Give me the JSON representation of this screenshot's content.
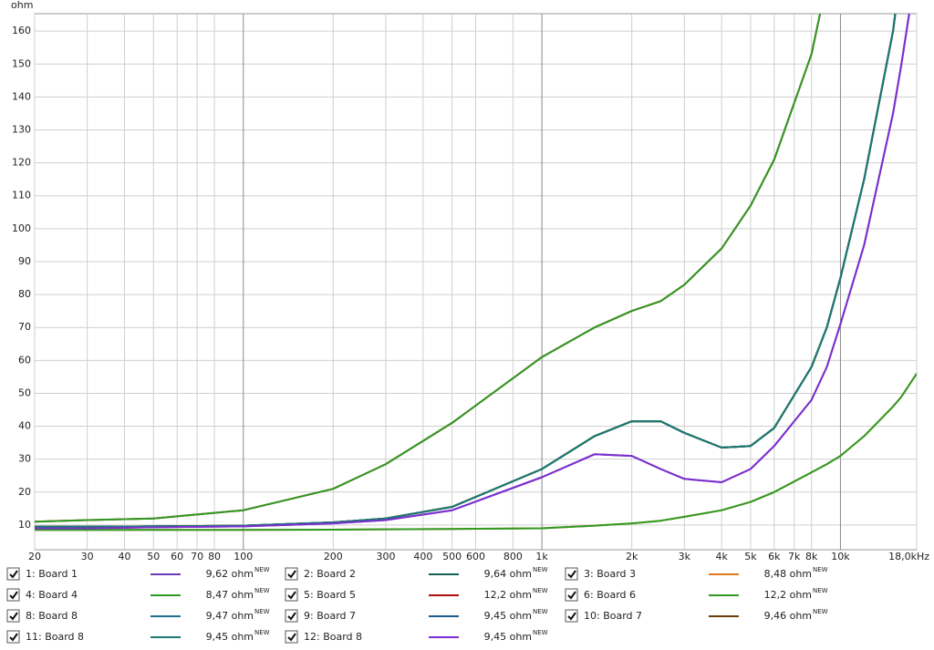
{
  "chart_data": {
    "type": "line",
    "y_label": "ohm",
    "xscale": "log",
    "grid": true,
    "xlim": [
      20,
      18000
    ],
    "ylim": [
      2.5,
      165.3
    ],
    "xticks": [
      20,
      30,
      40,
      50,
      60,
      70,
      80,
      100,
      200,
      300,
      400,
      500,
      600,
      800,
      {
        "value": 1000,
        "label": "1k"
      },
      {
        "value": 2000,
        "label": "2k"
      },
      {
        "value": 3000,
        "label": "3k"
      },
      {
        "value": 4000,
        "label": "4k"
      },
      {
        "value": 5000,
        "label": "5k"
      },
      {
        "value": 6000,
        "label": "6k"
      },
      {
        "value": 7000,
        "label": "7k"
      },
      {
        "value": 8000,
        "label": "8k"
      },
      {
        "value": 10000,
        "label": "10k"
      },
      {
        "value": 18000,
        "label": "18,0kHz"
      }
    ],
    "yticks": [
      10,
      20,
      30,
      40,
      50,
      60,
      70,
      80,
      90,
      100,
      110,
      120,
      130,
      140,
      150,
      160
    ],
    "x": [
      20,
      30,
      50,
      100,
      200,
      300,
      500,
      1000,
      1500,
      2000,
      2500,
      3000,
      4000,
      5000,
      6000,
      8000,
      9000,
      10000,
      12000,
      15000,
      16000,
      18000
    ],
    "series": [
      {
        "name": "1: Board 1",
        "color": "#6a3cb8",
        "value_label": "9,62 ohm",
        "badge": "NEW",
        "values": [
          9,
          9,
          9.3,
          9.6,
          10.5,
          11.5,
          14.5,
          24.5,
          31.5,
          31,
          27,
          24,
          23,
          27,
          34,
          48,
          58,
          71,
          95,
          135,
          150,
          180
        ]
      },
      {
        "name": "2: Board 2",
        "color": "#17605a",
        "value_label": "9,64 ohm",
        "badge": "NEW",
        "values": [
          9.5,
          9.5,
          9.6,
          9.8,
          10.8,
          12,
          15.5,
          27,
          37,
          41.5,
          41.5,
          38,
          33.5,
          34,
          39.5,
          58,
          70,
          85,
          115,
          160,
          180,
          null
        ]
      },
      {
        "name": "3: Board 3",
        "color": "#e07b18",
        "value_label": "8,48 ohm",
        "badge": "NEW",
        "values": [
          8.5,
          8.5,
          8.5,
          8.5,
          8.6,
          8.7,
          8.8,
          9,
          9.8,
          10.5,
          11.3,
          12.5,
          14.5,
          17,
          20,
          26,
          28.5,
          31,
          37,
          46,
          49,
          56
        ]
      },
      {
        "name": "4: Board 4",
        "color": "#2e9a22",
        "value_label": "8,47 ohm",
        "badge": "NEW",
        "values": [
          8.5,
          8.5,
          8.5,
          8.5,
          8.6,
          8.7,
          8.8,
          9,
          9.8,
          10.5,
          11.3,
          12.5,
          14.5,
          17,
          20,
          26,
          28.5,
          31,
          37,
          46,
          49,
          56
        ]
      },
      {
        "name": "5: Board 5",
        "color": "#b01010",
        "value_label": "12,2 ohm",
        "badge": "NEW",
        "values": [
          11,
          11.5,
          12,
          14.5,
          21,
          28.5,
          41,
          61,
          70,
          75,
          78,
          83,
          94,
          107,
          121,
          153,
          175,
          null,
          null,
          null,
          null,
          null
        ]
      },
      {
        "name": "6: Board 6",
        "color": "#2e9a22",
        "value_label": "12,2 ohm",
        "badge": "NEW",
        "values": [
          11,
          11.5,
          12,
          14.5,
          21,
          28.5,
          41,
          61,
          70,
          75,
          78,
          83,
          94,
          107,
          121,
          153,
          175,
          null,
          null,
          null,
          null,
          null
        ]
      },
      {
        "name": "8: Board 8",
        "color": "#1c6e8c",
        "value_label": "9,47 ohm",
        "badge": "NEW",
        "values": [
          9.5,
          9.5,
          9.6,
          9.8,
          10.8,
          12,
          15.5,
          27,
          37,
          41.5,
          41.5,
          38,
          33.5,
          34,
          39.5,
          58,
          70,
          85,
          115,
          160,
          180,
          null
        ]
      },
      {
        "name": "9: Board 7",
        "color": "#1c5c8c",
        "value_label": "9,45 ohm",
        "badge": "NEW",
        "values": [
          9.5,
          9.5,
          9.6,
          9.8,
          10.8,
          12,
          15.5,
          27,
          37,
          41.5,
          41.5,
          38,
          33.5,
          34,
          39.5,
          58,
          70,
          85,
          115,
          160,
          180,
          null
        ]
      },
      {
        "name": "10: Board 7",
        "color": "#6b3d0a",
        "value_label": "9,46 ohm",
        "badge": "NEW",
        "values": [
          9.5,
          9.5,
          9.6,
          9.8,
          10.8,
          12,
          15.5,
          27,
          37,
          41.5,
          41.5,
          38,
          33.5,
          34,
          39.5,
          58,
          70,
          85,
          115,
          160,
          180,
          null
        ]
      },
      {
        "name": "11: Board 8",
        "color": "#1a7a70",
        "value_label": "9,45 ohm",
        "badge": "NEW",
        "values": [
          9.5,
          9.5,
          9.6,
          9.8,
          10.8,
          12,
          15.5,
          27,
          37,
          41.5,
          41.5,
          38,
          33.5,
          34,
          39.5,
          58,
          70,
          85,
          115,
          160,
          180,
          null
        ]
      },
      {
        "name": "12: Board 8",
        "color": "#7b2fd0",
        "value_label": "9,45 ohm",
        "badge": "NEW",
        "values": [
          9,
          9,
          9.3,
          9.6,
          10.5,
          11.5,
          14.5,
          24.5,
          31.5,
          31,
          27,
          24,
          23,
          27,
          34,
          48,
          58,
          71,
          95,
          135,
          150,
          180
        ]
      }
    ]
  }
}
